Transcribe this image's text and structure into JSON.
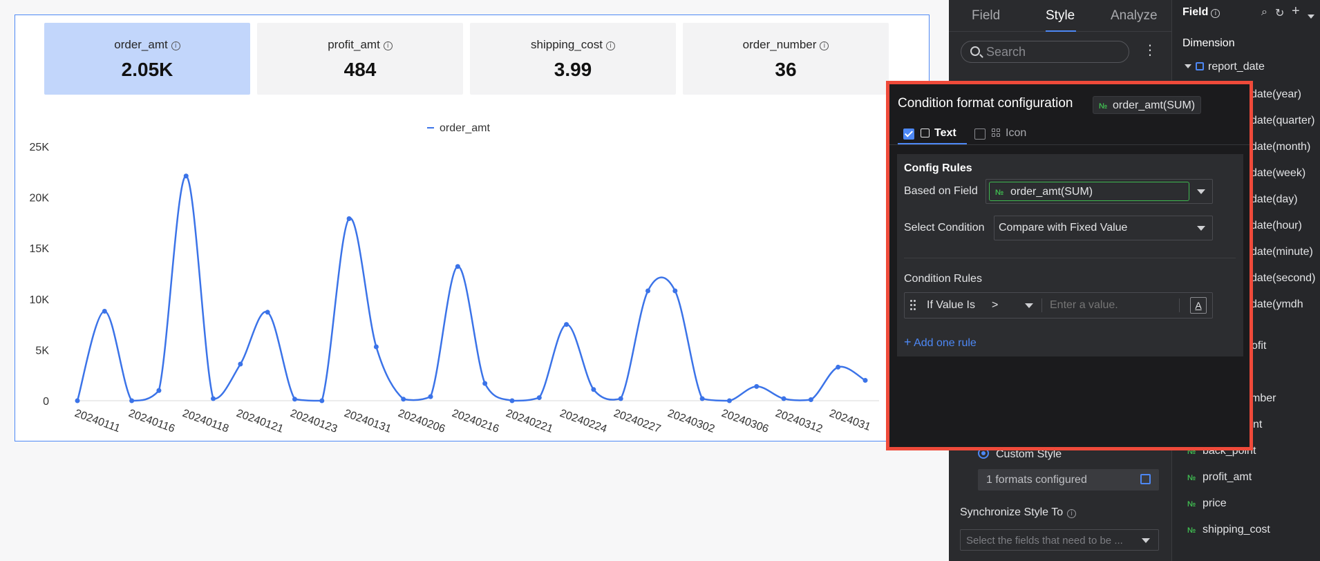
{
  "kpis": [
    {
      "label": "order_amt",
      "value": "2.05K",
      "active": true
    },
    {
      "label": "profit_amt",
      "value": "484",
      "active": false
    },
    {
      "label": "shipping_cost",
      "value": "3.99",
      "active": false
    },
    {
      "label": "order_number",
      "value": "36",
      "active": false
    }
  ],
  "chart_data": {
    "type": "line",
    "legend": [
      "order_amt"
    ],
    "legend_position": "top",
    "ylim": [
      0,
      25000
    ],
    "yticks": [
      0,
      5000,
      10000,
      15000,
      20000,
      25000
    ],
    "ytick_labels": [
      "0",
      "5K",
      "10K",
      "15K",
      "20K",
      "25K"
    ],
    "xtick_labels": [
      "20240111",
      "20240116",
      "20240118",
      "20240121",
      "20240123",
      "20240131",
      "20240206",
      "20240216",
      "20240221",
      "20240224",
      "20240227",
      "20240302",
      "20240306",
      "20240312",
      "2024031"
    ],
    "series": [
      {
        "name": "order_amt",
        "color": "#3b73e8",
        "values": [
          0,
          8800,
          0,
          1000,
          22100,
          200,
          3600,
          8700,
          150,
          0,
          17900,
          5300,
          150,
          400,
          13200,
          1700,
          0,
          300,
          7500,
          1100,
          200,
          10800,
          10800,
          200,
          0,
          1400,
          200,
          100,
          3300,
          2000
        ]
      }
    ]
  },
  "props_panel": {
    "tabs": [
      "Field",
      "Style",
      "Analyze"
    ],
    "active_tab": "Style",
    "search_placeholder": "Search",
    "custom_style_label": "Custom Style",
    "formats_configured": "1 formats configured",
    "sync_label": "Synchronize Style To",
    "sync_placeholder": "Select the fields that need to be ..."
  },
  "field_panel": {
    "title": "Field",
    "dimension_label": "Dimension",
    "tree_root": "report_date",
    "partial_items": [
      "date(year)",
      "date(quarter)",
      "date(month)",
      "date(week)",
      "date(day)",
      "date(hour)",
      "date(minute)",
      "date(second)",
      "date(ymdh",
      "ofit",
      "mber",
      "nt"
    ],
    "measures": [
      "back_point",
      "profit_amt",
      "price",
      "shipping_cost"
    ]
  },
  "popup": {
    "title": "Condition format configuration",
    "field_tag": "order_amt(SUM)",
    "tab_text": "Text",
    "tab_icon": "Icon",
    "config_rules_title": "Config Rules",
    "based_on_label": "Based on Field",
    "based_on_value": "order_amt(SUM)",
    "select_condition_label": "Select Condition",
    "select_condition_value": "Compare with Fixed Value",
    "condition_rules_title": "Condition Rules",
    "rule_label": "If Value Is",
    "rule_operator": ">",
    "rule_value_placeholder": "Enter a value.",
    "font_button": "A",
    "add_rule": "Add one rule"
  }
}
